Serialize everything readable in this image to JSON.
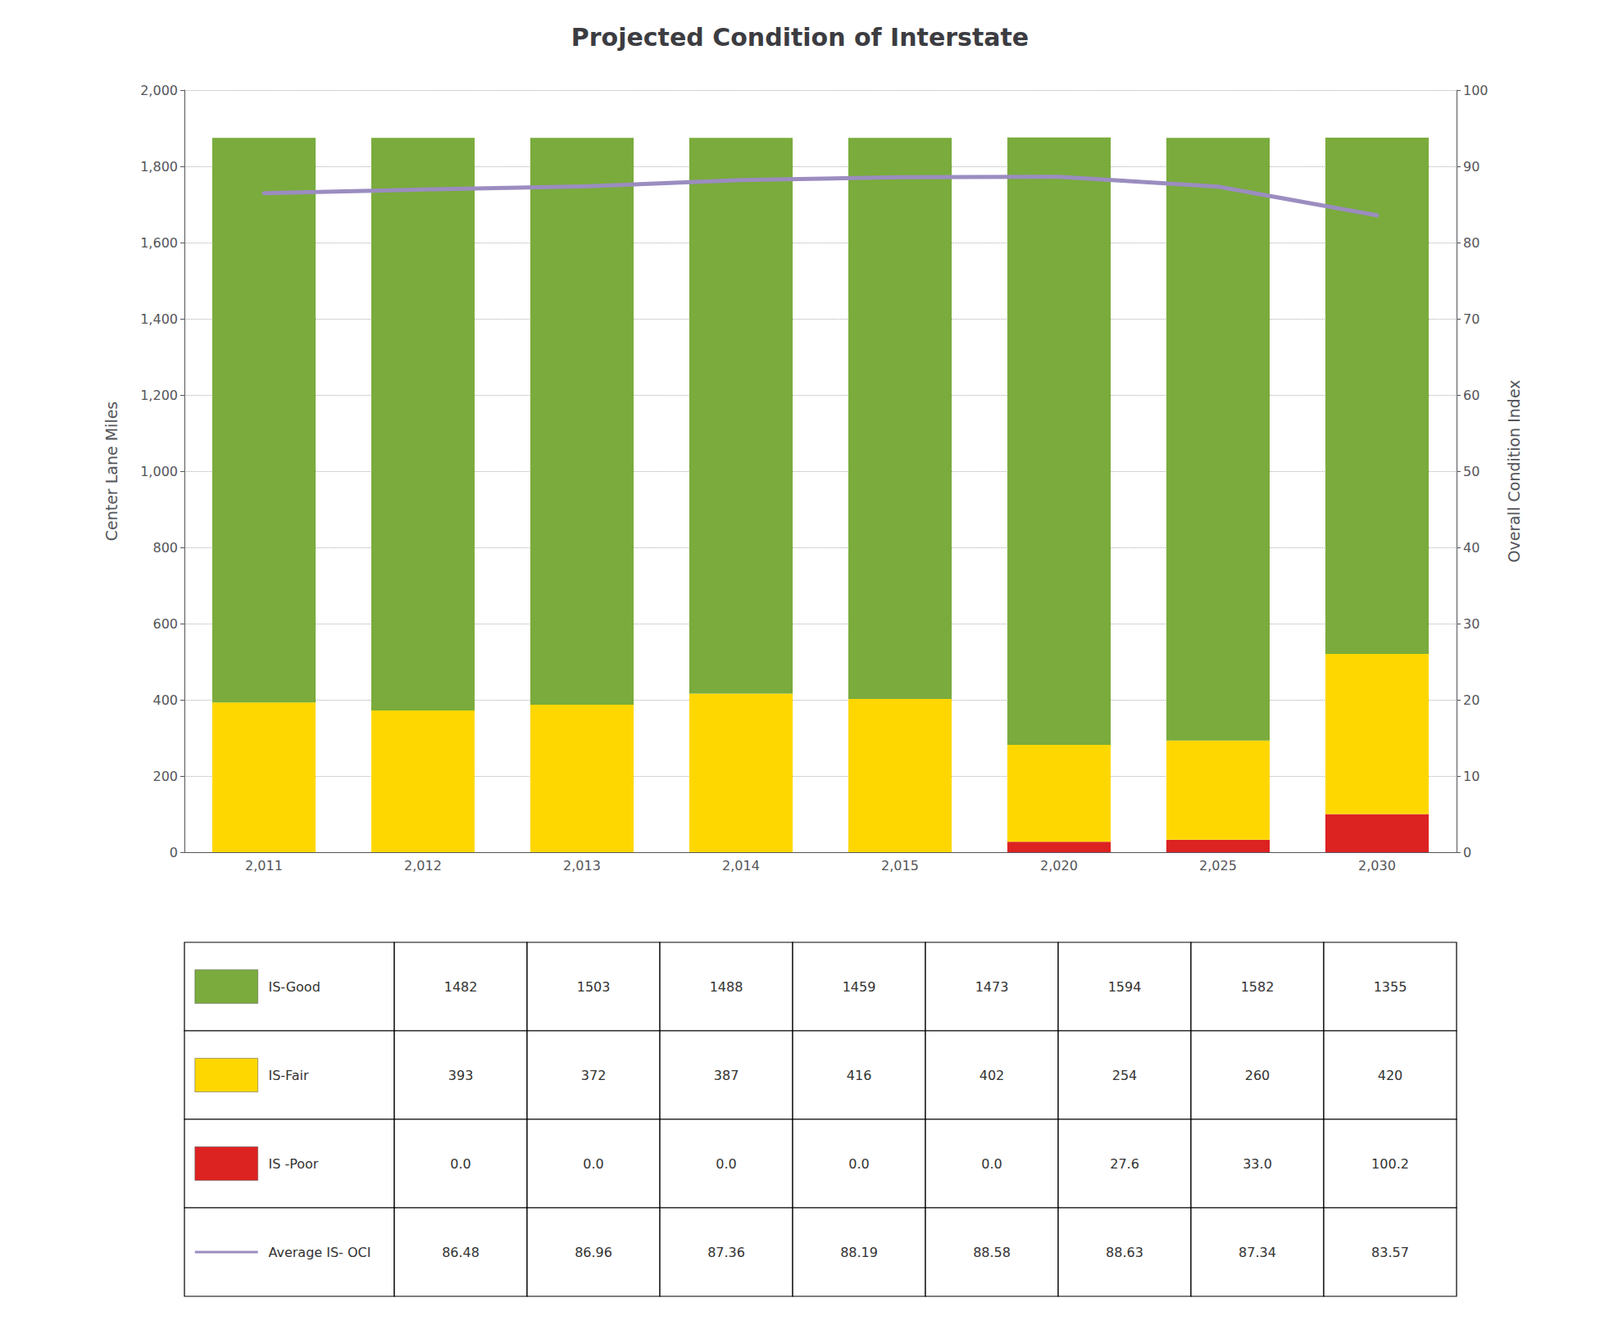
{
  "chart_data": {
    "type": "bar",
    "title": "Projected Condition of Interstate",
    "categories": [
      "2,011",
      "2,012",
      "2,013",
      "2,014",
      "2,015",
      "2,020",
      "2,025",
      "2,030"
    ],
    "series": [
      {
        "name": "IS -Poor",
        "color": "#DD2222",
        "values": [
          0.0,
          0.0,
          0.0,
          0.0,
          0.0,
          27.6,
          33.0,
          100.2
        ],
        "value_labels": [
          "0.0",
          "0.0",
          "0.0",
          "0.0",
          "0.0",
          "27.6",
          "33.0",
          "100.2"
        ]
      },
      {
        "name": "IS-Fair",
        "color": "#FFD700",
        "values": [
          393,
          372,
          387,
          416,
          402,
          254,
          260,
          420
        ]
      },
      {
        "name": "IS-Good",
        "color": "#7aab3c",
        "values": [
          1482,
          1503,
          1488,
          1459,
          1473,
          1594,
          1582,
          1355
        ]
      },
      {
        "name": "Average IS- OCI",
        "type": "line",
        "axis": "y2",
        "color": "#9B8DC0",
        "values": [
          86.48,
          86.96,
          87.36,
          88.19,
          88.58,
          88.63,
          87.34,
          83.57
        ]
      }
    ],
    "stacked": true,
    "ylabel": "Center Lane Miles",
    "y2label": "Overall Condition Index",
    "ylim": [
      0,
      2000
    ],
    "yticks": [
      0,
      200,
      400,
      600,
      800,
      {
        "value": 1000,
        "label": "1,000"
      },
      {
        "value": 1200,
        "label": "1,200"
      },
      {
        "value": 1400,
        "label": "1,400"
      },
      {
        "value": 1600,
        "label": "1,600"
      },
      {
        "value": 1800,
        "label": "1,800"
      },
      {
        "value": 2000,
        "label": "2,000"
      }
    ],
    "y2lim": [
      0,
      100
    ],
    "y2ticks": [
      0,
      10,
      20,
      30,
      40,
      50,
      60,
      70,
      80,
      90,
      100
    ],
    "grid": true
  }
}
